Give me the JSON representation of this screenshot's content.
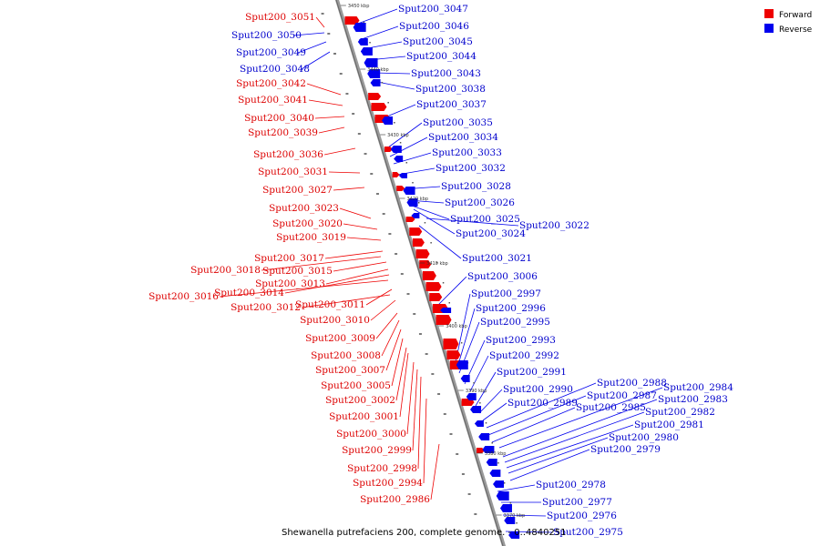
{
  "caption": "Shewanella putrefaciens 200, complete genome. - 0..4840251",
  "colors": {
    "forward": "#ee0000",
    "reverse": "#0000ee",
    "axis": "#888888"
  },
  "legend": [
    {
      "label": "Forward",
      "color": "#ee0000"
    },
    {
      "label": "Reverse",
      "color": "#0000ee"
    }
  ],
  "ticks": [
    "3450 kbp",
    "3440 kbp",
    "3430 kbp",
    "3420 kbp",
    "3410 kbp",
    "3400 kbp",
    "3390 kbp",
    "3380 kbp",
    "3370 kbp"
  ],
  "forward_genes": [
    "Sput200_3051",
    "Sput200_3042",
    "Sput200_3041",
    "Sput200_3040",
    "Sput200_3039",
    "Sput200_3036",
    "Sput200_3031",
    "Sput200_3027",
    "Sput200_3023",
    "Sput200_3020",
    "Sput200_3019",
    "Sput200_3017",
    "Sput200_3018",
    "Sput200_3015",
    "Sput200_3013",
    "Sput200_3014",
    "Sput200_3016",
    "Sput200_3011",
    "Sput200_3012",
    "Sput200_3010",
    "Sput200_3009",
    "Sput200_3008",
    "Sput200_3007",
    "Sput200_3005",
    "Sput200_3002",
    "Sput200_3001",
    "Sput200_3000",
    "Sput200_2999",
    "Sput200_2998",
    "Sput200_2994",
    "Sput200_2986"
  ],
  "reverse_genes": [
    "Sput200_3050",
    "Sput200_3049",
    "Sput200_3048",
    "Sput200_3047",
    "Sput200_3046",
    "Sput200_3045",
    "Sput200_3044",
    "Sput200_3043",
    "Sput200_3038",
    "Sput200_3037",
    "Sput200_3035",
    "Sput200_3034",
    "Sput200_3033",
    "Sput200_3032",
    "Sput200_3028",
    "Sput200_3026",
    "Sput200_3025",
    "Sput200_3024",
    "Sput200_3022",
    "Sput200_3021",
    "Sput200_3006",
    "Sput200_2997",
    "Sput200_2996",
    "Sput200_2995",
    "Sput200_2993",
    "Sput200_2992",
    "Sput200_2991",
    "Sput200_2990",
    "Sput200_2989",
    "Sput200_2988",
    "Sput200_2987",
    "Sput200_2985",
    "Sput200_2984",
    "Sput200_2983",
    "Sput200_2982",
    "Sput200_2981",
    "Sput200_2980",
    "Sput200_2979",
    "Sput200_2978",
    "Sput200_2977",
    "Sput200_2976",
    "Sput200_2975"
  ]
}
